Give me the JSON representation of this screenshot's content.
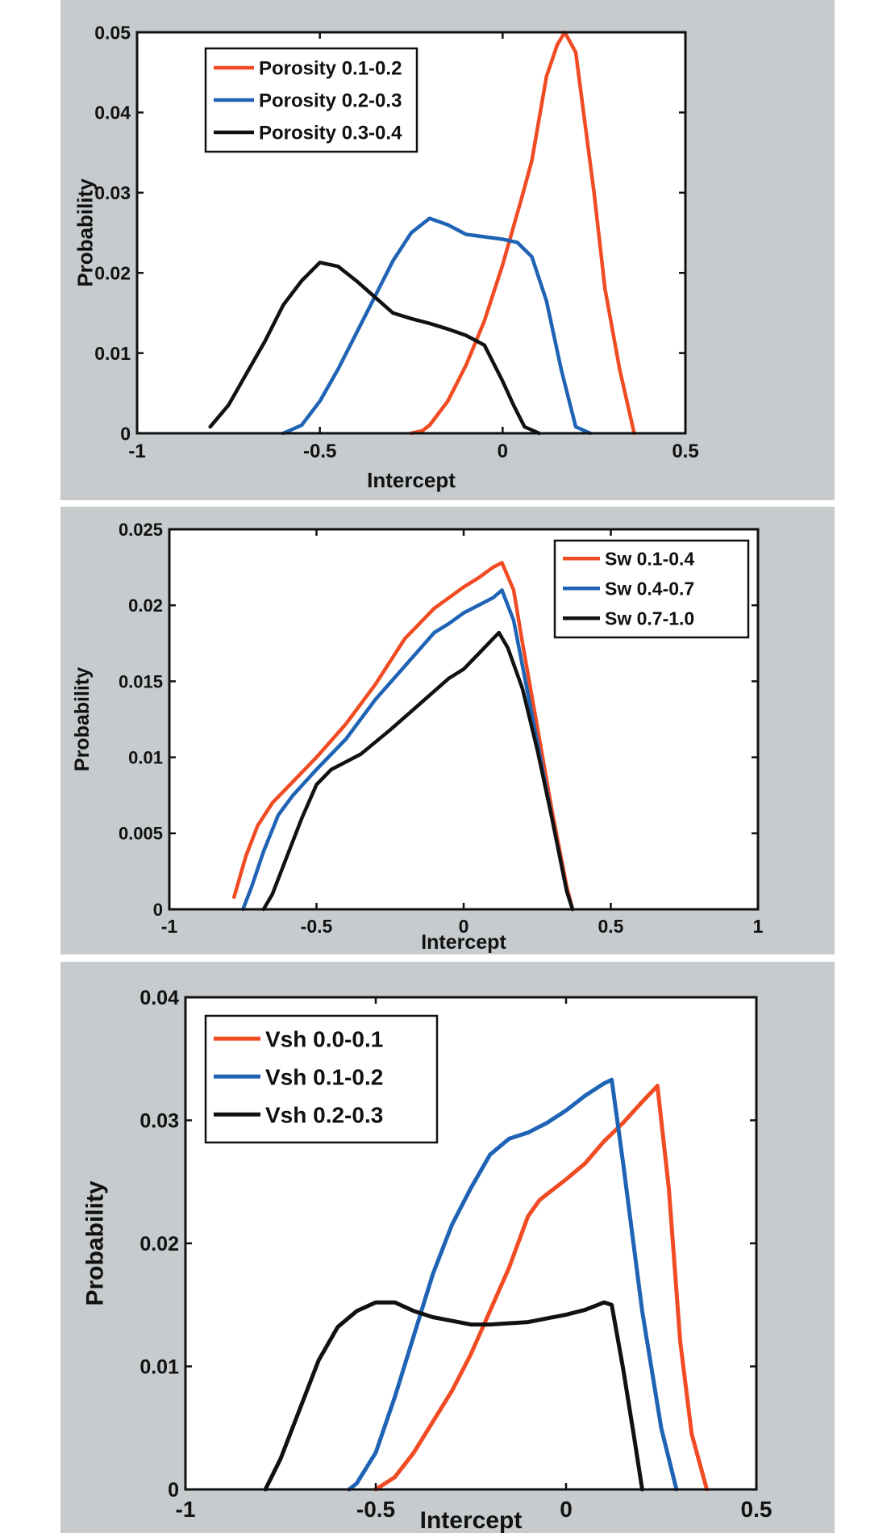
{
  "chart_data": [
    {
      "type": "line",
      "title": "",
      "xlabel": "Intercept",
      "ylabel": "Probability",
      "xlim": [
        -1,
        0.5
      ],
      "ylim": [
        0,
        0.05
      ],
      "xticks": [
        "-1",
        "-0.5",
        "0",
        "0.5"
      ],
      "xtick_values": [
        -1,
        -0.5,
        0,
        0.5
      ],
      "yticks": [
        "0",
        "0.01",
        "0.02",
        "0.03",
        "0.04",
        "0.05"
      ],
      "ytick_values": [
        0,
        0.01,
        0.02,
        0.03,
        0.04,
        0.05
      ],
      "legend_position": "top-left",
      "series": [
        {
          "name": "Porosity 0.1-0.2",
          "color": "#f04b23",
          "x": [
            -0.25,
            -0.22,
            -0.2,
            -0.15,
            -0.1,
            -0.05,
            0,
            0.05,
            0.08,
            0.12,
            0.15,
            0.17,
            0.2,
            0.23,
            0.25,
            0.28,
            0.32,
            0.36
          ],
          "y": [
            0,
            0.0003,
            0.001,
            0.004,
            0.0085,
            0.014,
            0.021,
            0.029,
            0.034,
            0.0445,
            0.0485,
            0.05,
            0.0475,
            0.037,
            0.03,
            0.018,
            0.008,
            0
          ]
        },
        {
          "name": "Porosity 0.2-0.3",
          "color": "#1f63b5",
          "x": [
            -0.6,
            -0.55,
            -0.5,
            -0.45,
            -0.4,
            -0.35,
            -0.3,
            -0.25,
            -0.2,
            -0.15,
            -0.1,
            -0.05,
            0,
            0.04,
            0.08,
            0.12,
            0.16,
            0.2,
            0.24
          ],
          "y": [
            0,
            0.001,
            0.004,
            0.008,
            0.0125,
            0.017,
            0.0215,
            0.025,
            0.0268,
            0.026,
            0.0248,
            0.0245,
            0.0242,
            0.0238,
            0.022,
            0.0165,
            0.008,
            0.0008,
            0
          ]
        },
        {
          "name": "Porosity 0.3-0.4",
          "color": "#111111",
          "x": [
            -0.8,
            -0.75,
            -0.7,
            -0.65,
            -0.6,
            -0.55,
            -0.5,
            -0.45,
            -0.4,
            -0.35,
            -0.3,
            -0.25,
            -0.2,
            -0.15,
            -0.1,
            -0.05,
            0,
            0.03,
            0.06,
            0.1
          ],
          "y": [
            0.0008,
            0.0035,
            0.0075,
            0.0115,
            0.016,
            0.019,
            0.0213,
            0.0208,
            0.019,
            0.017,
            0.015,
            0.0143,
            0.0137,
            0.013,
            0.0122,
            0.011,
            0.0065,
            0.0035,
            0.0008,
            0
          ]
        }
      ]
    },
    {
      "type": "line",
      "title": "",
      "xlabel": "Intercept",
      "ylabel": "Probability",
      "xlim": [
        -1,
        1
      ],
      "ylim": [
        0,
        0.025
      ],
      "xticks": [
        "-1",
        "-0.5",
        "0",
        "0.5",
        "1"
      ],
      "xtick_values": [
        -1,
        -0.5,
        0,
        0.5,
        1
      ],
      "yticks": [
        "0",
        "0.005",
        "0.01",
        "0.015",
        "0.02",
        "0.025"
      ],
      "ytick_values": [
        0,
        0.005,
        0.01,
        0.015,
        0.02,
        0.025
      ],
      "legend_position": "top-right",
      "series": [
        {
          "name": "Sw 0.1-0.4",
          "color": "#f04b23",
          "x": [
            -0.78,
            -0.74,
            -0.7,
            -0.65,
            -0.6,
            -0.5,
            -0.4,
            -0.3,
            -0.2,
            -0.1,
            -0.05,
            0,
            0.05,
            0.1,
            0.13,
            0.17,
            0.2,
            0.25,
            0.3,
            0.35,
            0.37
          ],
          "y": [
            0.0008,
            0.0035,
            0.0055,
            0.007,
            0.008,
            0.01,
            0.0122,
            0.0148,
            0.0178,
            0.0198,
            0.0205,
            0.0212,
            0.0218,
            0.0225,
            0.0228,
            0.021,
            0.0175,
            0.012,
            0.0065,
            0.0015,
            0
          ]
        },
        {
          "name": "Sw 0.4-0.7",
          "color": "#1f63b5",
          "x": [
            -0.75,
            -0.72,
            -0.68,
            -0.63,
            -0.58,
            -0.5,
            -0.4,
            -0.3,
            -0.2,
            -0.1,
            -0.05,
            0,
            0.05,
            0.1,
            0.13,
            0.17,
            0.2,
            0.25,
            0.3,
            0.35,
            0.37
          ],
          "y": [
            0,
            0.0015,
            0.0038,
            0.0062,
            0.0075,
            0.0092,
            0.0112,
            0.0138,
            0.016,
            0.0182,
            0.0188,
            0.0195,
            0.02,
            0.0205,
            0.021,
            0.019,
            0.016,
            0.011,
            0.006,
            0.0012,
            0
          ]
        },
        {
          "name": "Sw 0.7-1.0",
          "color": "#111111",
          "x": [
            -0.68,
            -0.65,
            -0.6,
            -0.55,
            -0.5,
            -0.45,
            -0.35,
            -0.25,
            -0.15,
            -0.05,
            0,
            0.05,
            0.1,
            0.12,
            0.15,
            0.2,
            0.25,
            0.3,
            0.35,
            0.37
          ],
          "y": [
            0,
            0.001,
            0.0035,
            0.006,
            0.0082,
            0.0092,
            0.0102,
            0.0118,
            0.0135,
            0.0152,
            0.0158,
            0.0168,
            0.0178,
            0.0182,
            0.0172,
            0.0145,
            0.0105,
            0.006,
            0.0012,
            0
          ]
        }
      ]
    },
    {
      "type": "line",
      "title": "",
      "xlabel": "Intercept",
      "ylabel": "Probability",
      "xlim": [
        -1,
        0.5
      ],
      "ylim": [
        0,
        0.04
      ],
      "xticks": [
        "-1",
        "-0.5",
        "0",
        "0.5"
      ],
      "xtick_values": [
        -1,
        -0.5,
        0,
        0.5
      ],
      "yticks": [
        "0",
        "0.01",
        "0.02",
        "0.03",
        "0.04"
      ],
      "ytick_values": [
        0,
        0.01,
        0.02,
        0.03,
        0.04
      ],
      "legend_position": "top-left",
      "series": [
        {
          "name": "Vsh 0.0-0.1",
          "color": "#f04b23",
          "x": [
            -0.5,
            -0.45,
            -0.4,
            -0.35,
            -0.3,
            -0.25,
            -0.2,
            -0.15,
            -0.1,
            -0.07,
            -0.05,
            0,
            0.05,
            0.1,
            0.15,
            0.2,
            0.24,
            0.27,
            0.3,
            0.33,
            0.37
          ],
          "y": [
            0,
            0.001,
            0.003,
            0.0055,
            0.008,
            0.011,
            0.0145,
            0.018,
            0.0222,
            0.0235,
            0.024,
            0.0252,
            0.0265,
            0.0283,
            0.0298,
            0.0315,
            0.0328,
            0.0245,
            0.012,
            0.0045,
            0
          ]
        },
        {
          "name": "Vsh 0.1-0.2",
          "color": "#1f63b5",
          "x": [
            -0.57,
            -0.55,
            -0.5,
            -0.45,
            -0.4,
            -0.35,
            -0.3,
            -0.25,
            -0.2,
            -0.15,
            -0.1,
            -0.05,
            0,
            0.05,
            0.1,
            0.12,
            0.15,
            0.2,
            0.25,
            0.29
          ],
          "y": [
            0,
            0.0005,
            0.003,
            0.0075,
            0.0125,
            0.0175,
            0.0215,
            0.0245,
            0.0272,
            0.0285,
            0.029,
            0.0298,
            0.0308,
            0.032,
            0.033,
            0.0333,
            0.0265,
            0.0145,
            0.005,
            0
          ]
        },
        {
          "name": "Vsh 0.2-0.3",
          "color": "#111111",
          "x": [
            -0.79,
            -0.75,
            -0.7,
            -0.65,
            -0.6,
            -0.55,
            -0.5,
            -0.45,
            -0.4,
            -0.35,
            -0.3,
            -0.25,
            -0.2,
            -0.1,
            0,
            0.05,
            0.1,
            0.12,
            0.15,
            0.18,
            0.2
          ],
          "y": [
            0,
            0.0025,
            0.0065,
            0.0105,
            0.0132,
            0.0145,
            0.0152,
            0.0152,
            0.0145,
            0.014,
            0.0137,
            0.0134,
            0.0134,
            0.0136,
            0.0142,
            0.0146,
            0.0152,
            0.015,
            0.0098,
            0.004,
            0
          ]
        }
      ]
    }
  ]
}
